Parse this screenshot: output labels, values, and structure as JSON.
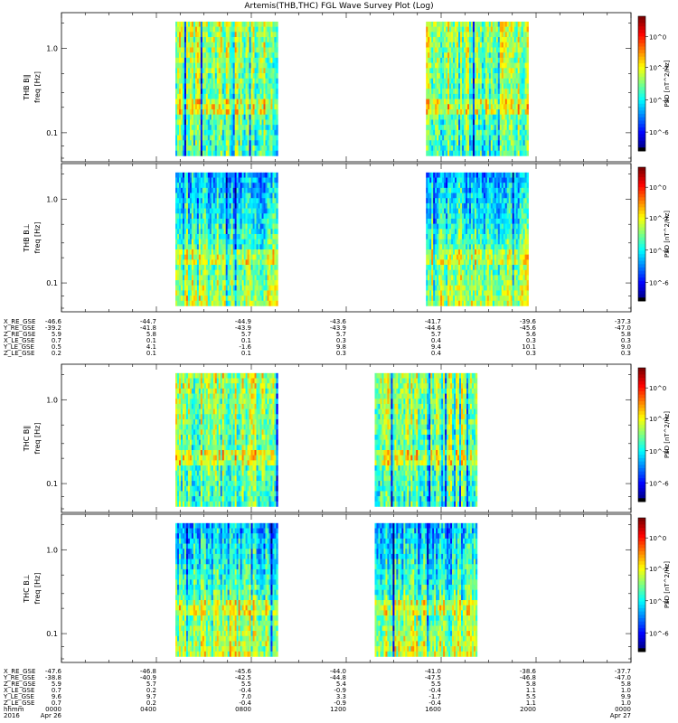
{
  "title": "Artemis(THB,THC) FGL Wave Survey Plot (Log)",
  "chart_data": {
    "type": "heatmap",
    "title": "Artemis(THB,THC) FGL Wave Survey Plot (Log)",
    "x_ticks": [
      "0000",
      "0400",
      "0800",
      "1200",
      "1600",
      "2000",
      "0000"
    ],
    "x_dates": {
      "start": "Apr 26",
      "end": "Apr 27",
      "year": "2016",
      "row_label": "hhmm"
    },
    "y_scale": "log",
    "y_ticks": [
      "1.0",
      "0.1"
    ],
    "z_scale": "log",
    "colorbar_ticks": [
      "10^0",
      "10^-2",
      "10^-4",
      "10^-6"
    ],
    "colorbar_label": "PSD [nT^2/Hz]",
    "panels": [
      {
        "probe": "THB",
        "ylabel": "freq [Hz]",
        "component": "THB B∥",
        "coverage": [
          [
            0.2,
            0.38
          ],
          [
            0.64,
            0.82
          ]
        ],
        "style": "par",
        "seed": 3
      },
      {
        "probe": "THB",
        "ylabel": "freq [Hz]",
        "component": "THB B⊥",
        "coverage": [
          [
            0.2,
            0.38
          ],
          [
            0.64,
            0.82
          ]
        ],
        "style": "perp",
        "seed": 7
      },
      {
        "probe": "THC",
        "ylabel": "freq [Hz]",
        "component": "THC B∥",
        "coverage": [
          [
            0.2,
            0.38
          ],
          [
            0.55,
            0.73
          ]
        ],
        "style": "par",
        "seed": 11
      },
      {
        "probe": "THC",
        "ylabel": "freq [Hz]",
        "component": "THC B⊥",
        "coverage": [
          [
            0.2,
            0.38
          ],
          [
            0.55,
            0.73
          ]
        ],
        "style": "perp",
        "seed": 19
      }
    ],
    "ephemeris_thb": {
      "labels": [
        "X_RE_GSE",
        "Y_RE_GSE",
        "Z_RE_GSE",
        "X_LE_GSE",
        "Y_LE_GSE",
        "Z_LE_GSE"
      ],
      "columns": [
        [
          "-46.6",
          "-39.2",
          "5.9",
          "0.7",
          "0.5",
          "0.2"
        ],
        [
          "-44.7",
          "-41.8",
          "5.8",
          "0.1",
          "4.1",
          "0.1"
        ],
        [
          "-44.9",
          "-43.9",
          "5.7",
          "0.1",
          "-1.6",
          "0.1"
        ],
        [
          "-43.6",
          "-43.9",
          "5.7",
          "0.3",
          "9.8",
          "0.3"
        ],
        [
          "-41.7",
          "-44.6",
          "5.7",
          "0.4",
          "9.4",
          "0.4"
        ],
        [
          "-39.6",
          "-45.6",
          "5.6",
          "0.3",
          "10.1",
          "0.3"
        ],
        [
          "-37.3",
          "-47.0",
          "5.8",
          "0.3",
          "9.0",
          "0.3"
        ]
      ]
    },
    "ephemeris_thc": {
      "labels": [
        "X_RE_GSE",
        "Y_RE_GSE",
        "Z_RE_GSE",
        "X_LE_GSE",
        "Y_LE_GSE",
        "Z_LE_GSE"
      ],
      "columns": [
        [
          "-47.6",
          "-38.8",
          "5.9",
          "0.7",
          "9.6",
          "0.7"
        ],
        [
          "-46.8",
          "-40.9",
          "5.7",
          "0.2",
          "9.7",
          "0.2"
        ],
        [
          "-45.6",
          "-42.5",
          "5.5",
          "-0.4",
          "7.0",
          "-0.4"
        ],
        [
          "-44.0",
          "-44.8",
          "5.4",
          "-0.9",
          "3.3",
          "-0.9"
        ],
        [
          "-41.0",
          "-47.5",
          "5.5",
          "-0.4",
          "-1.7",
          "-0.4"
        ],
        [
          "-38.6",
          "-46.8",
          "5.8",
          "1.1",
          "5.5",
          "1.1"
        ],
        [
          "-37.7",
          "-47.0",
          "5.8",
          "1.0",
          "9.9",
          "1.0"
        ]
      ]
    }
  }
}
